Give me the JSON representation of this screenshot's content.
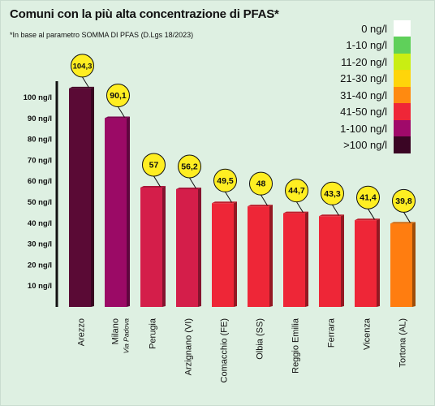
{
  "chart_data": {
    "type": "bar",
    "title": "Comuni con la più alta concentrazione di PFAS*",
    "subtitle": "*In base al parametro SOMMA DI PFAS (D.Lgs 18/2023)",
    "ylim": [
      0,
      105
    ],
    "yticks": [
      "10 ng/l",
      "20 ng/l",
      "30 ng/l",
      "40 ng/l",
      "50 ng/l",
      "60 ng/l",
      "70 ng/l",
      "80 ng/l",
      "90 ng/l",
      "100 ng/l"
    ],
    "categories": [
      {
        "name": "Arezzo",
        "sub": ""
      },
      {
        "name": "Milano",
        "sub": "Via Padova"
      },
      {
        "name": "Perugia",
        "sub": ""
      },
      {
        "name": "Arzignano (VI)",
        "sub": ""
      },
      {
        "name": "Comacchio (FE)",
        "sub": ""
      },
      {
        "name": "Olbia (SS)",
        "sub": ""
      },
      {
        "name": "Reggio Emilia",
        "sub": ""
      },
      {
        "name": "Ferrara",
        "sub": ""
      },
      {
        "name": "Vicenza",
        "sub": ""
      },
      {
        "name": "Tortona (AL)",
        "sub": ""
      }
    ],
    "values": [
      104.3,
      90.1,
      57,
      56.2,
      49.5,
      48,
      44.7,
      43.3,
      41.4,
      39.8
    ],
    "value_labels": [
      "104,3",
      "90,1",
      "57",
      "56,2",
      "49,5",
      "48",
      "44,7",
      "43,3",
      "41,4",
      "39,8"
    ],
    "bar_colors": [
      "#5a0a35",
      "#9b0a66",
      "#d41e4a",
      "#d41e4a",
      "#ee2637",
      "#ee2637",
      "#ee2637",
      "#ee2637",
      "#ee2637",
      "#ff7d10"
    ],
    "legend": [
      {
        "label": "0 ng/l",
        "color": "#ffffff"
      },
      {
        "label": "1-10 ng/l",
        "color": "#5fd05a"
      },
      {
        "label": "11-20 ng/l",
        "color": "#c9ee12"
      },
      {
        "label": "21-30 ng/l",
        "color": "#ffd50a"
      },
      {
        "label": "31-40 ng/l",
        "color": "#ff8a10"
      },
      {
        "label": "41-50 ng/l",
        "color": "#ef2637"
      },
      {
        "label": "1-100 ng/l",
        "color": "#a0096a"
      },
      {
        "label": ">100 ng/l",
        "color": "#3a0524"
      }
    ],
    "label_bubble_color": "#ffee22",
    "grid": false,
    "legend_position": "top-right"
  }
}
